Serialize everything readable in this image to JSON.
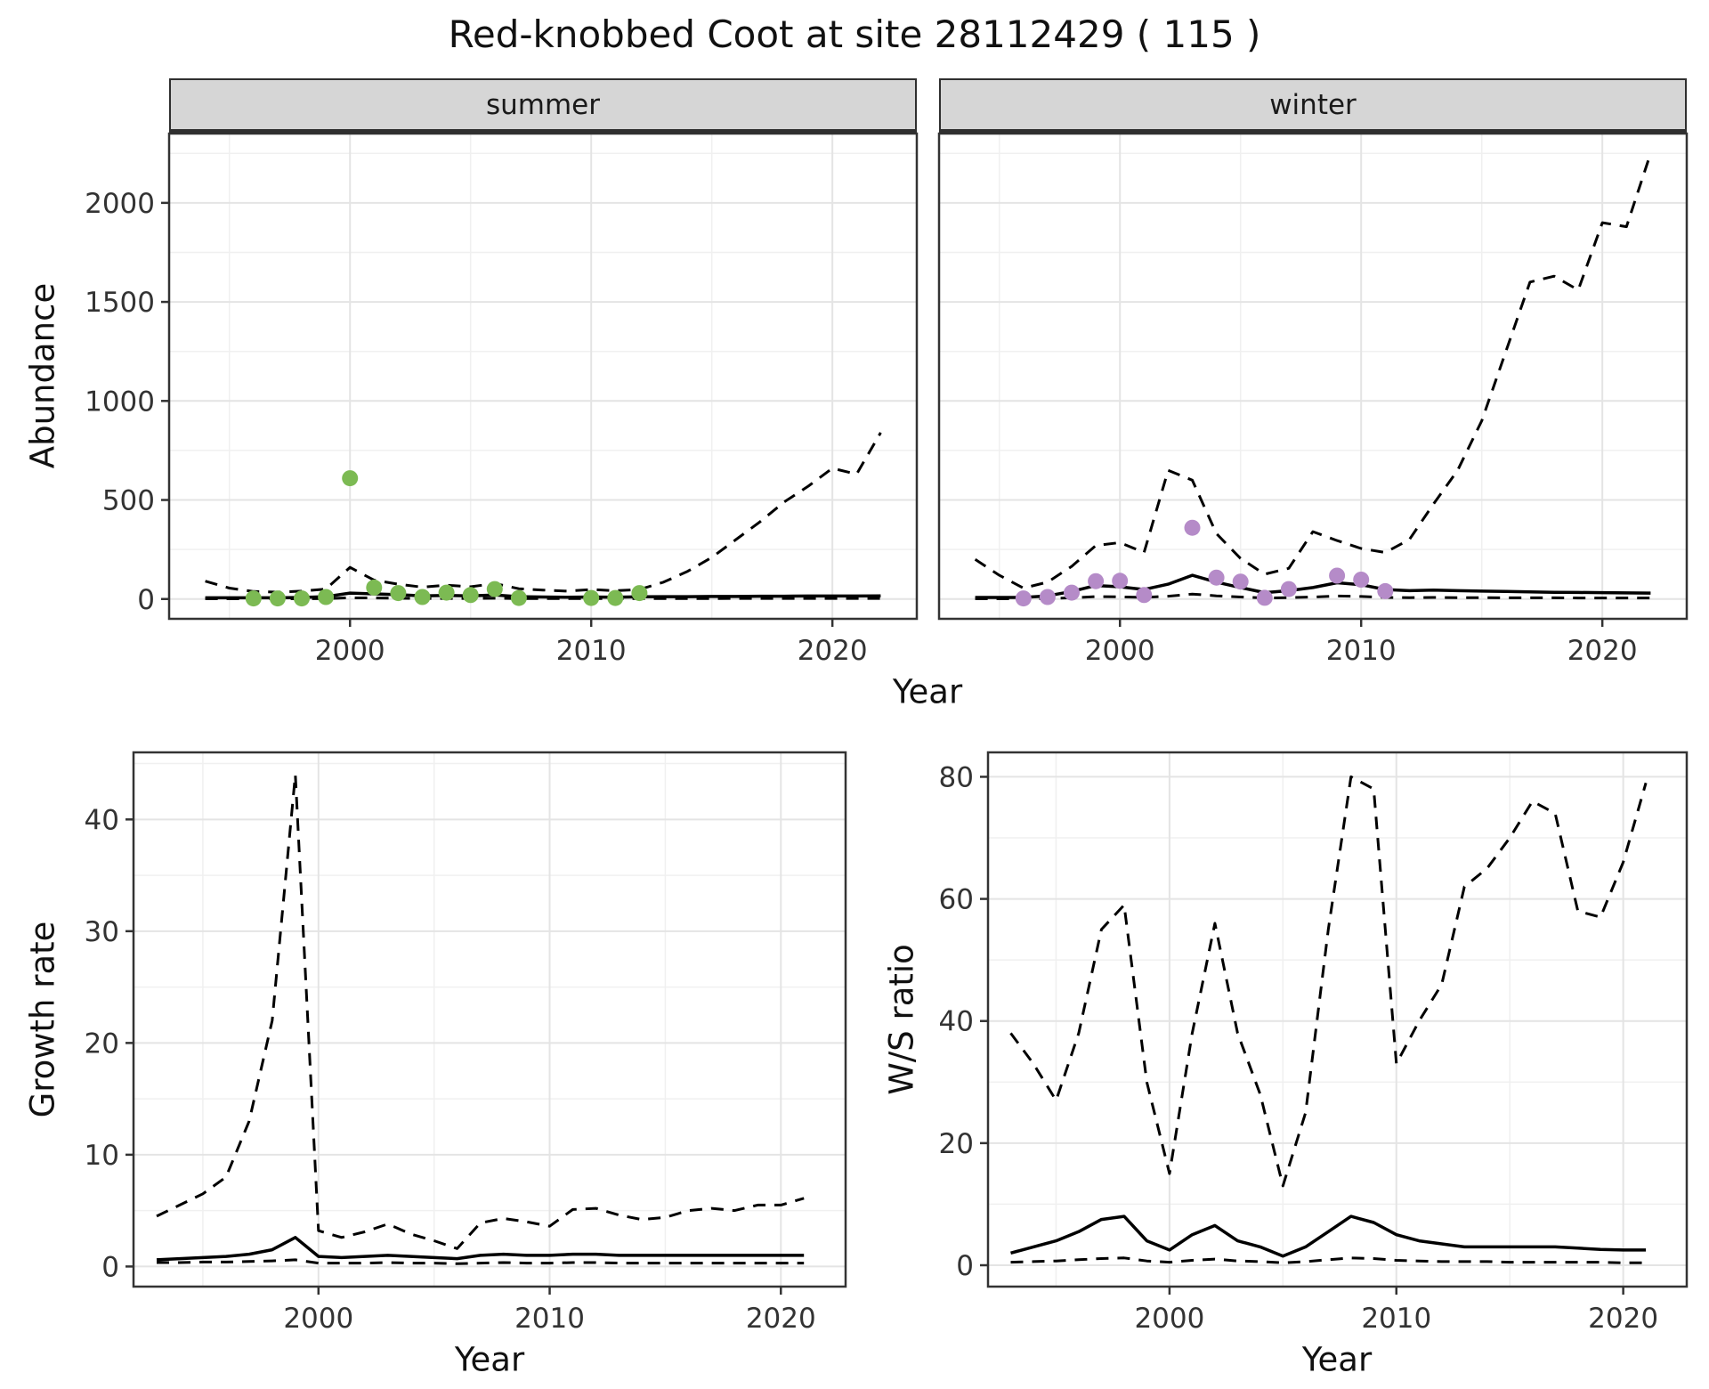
{
  "title": "Red-knobbed Coot at site 28112429 ( 115 )",
  "axes": {
    "abundance_y": "Abundance",
    "top_x": "Year",
    "growth_y": "Growth rate",
    "growth_x": "Year",
    "ratio_y": "W/S ratio",
    "ratio_x": "Year"
  },
  "colors": {
    "summer_points": "#7cba53",
    "winter_points": "#b58bc8",
    "line": "#000000",
    "grid_major": "#e4e4e4",
    "grid_minor": "#f0f0f0",
    "strip_bg": "#d6d6d6",
    "panel_border": "#333333"
  },
  "chart_data": [
    {
      "id": "abundance-summer",
      "type": "line",
      "facet_label": "summer",
      "xlabel": "Year",
      "ylabel": "Abundance",
      "xlim": [
        1992.5,
        2023.5
      ],
      "ylim": [
        -100,
        2350
      ],
      "x_ticks": [
        2000,
        2010,
        2020
      ],
      "y_ticks": [
        0,
        500,
        1000,
        1500,
        2000
      ],
      "years": [
        1994,
        1995,
        1996,
        1997,
        1998,
        1999,
        2000,
        2001,
        2002,
        2003,
        2004,
        2005,
        2006,
        2007,
        2008,
        2009,
        2010,
        2011,
        2012,
        2013,
        2014,
        2015,
        2016,
        2017,
        2018,
        2019,
        2020,
        2021,
        2022
      ],
      "series": [
        {
          "name": "upper_ci",
          "style": "dashed",
          "y": [
            90,
            55,
            38,
            35,
            40,
            50,
            160,
            95,
            75,
            60,
            70,
            62,
            78,
            52,
            45,
            40,
            48,
            42,
            48,
            85,
            140,
            210,
            300,
            390,
            490,
            570,
            660,
            630,
            840
          ]
        },
        {
          "name": "median",
          "style": "solid",
          "y": [
            6,
            6,
            6,
            6,
            8,
            12,
            30,
            26,
            22,
            16,
            18,
            16,
            20,
            12,
            10,
            9,
            10,
            9,
            11,
            12,
            12,
            13,
            13,
            14,
            14,
            15,
            15,
            15,
            16
          ]
        },
        {
          "name": "lower_ci",
          "style": "dashed",
          "y": [
            1,
            1,
            1,
            1,
            1,
            2,
            6,
            5,
            4,
            3,
            3,
            3,
            4,
            2,
            2,
            2,
            2,
            2,
            2,
            2,
            2,
            2,
            3,
            3,
            3,
            3,
            3,
            3,
            3
          ]
        },
        {
          "name": "observations",
          "style": "points",
          "color": "#7cba53",
          "x": [
            1996,
            1997,
            1998,
            1999,
            2000,
            2001,
            2002,
            2003,
            2004,
            2005,
            2006,
            2007,
            2010,
            2011,
            2012
          ],
          "y": [
            3,
            3,
            3,
            10,
            610,
            58,
            30,
            10,
            32,
            20,
            50,
            5,
            5,
            5,
            30
          ]
        }
      ]
    },
    {
      "id": "abundance-winter",
      "type": "line",
      "facet_label": "winter",
      "xlabel": "Year",
      "ylabel": "Abundance",
      "xlim": [
        1992.5,
        2023.5
      ],
      "ylim": [
        -100,
        2350
      ],
      "x_ticks": [
        2000,
        2010,
        2020
      ],
      "y_ticks": [
        0,
        500,
        1000,
        1500,
        2000
      ],
      "years": [
        1994,
        1995,
        1996,
        1997,
        1998,
        1999,
        2000,
        2001,
        2002,
        2003,
        2004,
        2005,
        2006,
        2007,
        2008,
        2009,
        2010,
        2011,
        2012,
        2013,
        2014,
        2015,
        2016,
        2017,
        2018,
        2019,
        2020,
        2021,
        2022
      ],
      "series": [
        {
          "name": "upper_ci",
          "style": "dashed",
          "y": [
            200,
            120,
            55,
            85,
            165,
            270,
            285,
            235,
            650,
            600,
            330,
            205,
            125,
            155,
            340,
            295,
            255,
            235,
            300,
            480,
            650,
            900,
            1250,
            1600,
            1630,
            1560,
            1900,
            1880,
            2250
          ]
        },
        {
          "name": "median",
          "style": "solid",
          "y": [
            8,
            8,
            8,
            16,
            38,
            68,
            62,
            48,
            75,
            120,
            85,
            58,
            32,
            42,
            58,
            82,
            72,
            48,
            42,
            45,
            42,
            40,
            38,
            36,
            34,
            33,
            32,
            31,
            30
          ]
        },
        {
          "name": "lower_ci",
          "style": "dashed",
          "y": [
            1,
            1,
            1,
            2,
            6,
            12,
            11,
            8,
            14,
            25,
            16,
            10,
            5,
            7,
            10,
            15,
            13,
            8,
            7,
            8,
            7,
            7,
            6,
            6,
            6,
            5,
            5,
            5,
            5
          ]
        },
        {
          "name": "observations",
          "style": "points",
          "color": "#b58bc8",
          "x": [
            1996,
            1997,
            1998,
            1999,
            2000,
            2001,
            2003,
            2004,
            2005,
            2006,
            2007,
            2009,
            2010,
            2011
          ],
          "y": [
            3,
            10,
            32,
            90,
            92,
            20,
            360,
            108,
            88,
            6,
            50,
            118,
            98,
            40
          ]
        }
      ]
    },
    {
      "id": "growth-rate",
      "type": "line",
      "facet_label": "",
      "xlabel": "Year",
      "ylabel": "Growth rate",
      "xlim": [
        1992,
        2022.8
      ],
      "ylim": [
        -1.8,
        46
      ],
      "x_ticks": [
        2000,
        2010,
        2020
      ],
      "y_ticks": [
        0,
        10,
        20,
        30,
        40
      ],
      "years": [
        1993,
        1994,
        1995,
        1996,
        1997,
        1998,
        1999,
        2000,
        2001,
        2002,
        2003,
        2004,
        2005,
        2006,
        2007,
        2008,
        2009,
        2010,
        2011,
        2012,
        2013,
        2014,
        2015,
        2016,
        2017,
        2018,
        2019,
        2020,
        2021
      ],
      "series": [
        {
          "name": "upper_ci",
          "style": "dashed",
          "y": [
            4.5,
            5.5,
            6.5,
            8,
            13,
            22,
            44,
            3.2,
            2.6,
            3.1,
            3.8,
            2.9,
            2.3,
            1.6,
            3.9,
            4.3,
            4,
            3.6,
            5.1,
            5.2,
            4.6,
            4.2,
            4.4,
            5,
            5.2,
            5,
            5.5,
            5.5,
            6.1
          ]
        },
        {
          "name": "median",
          "style": "solid",
          "y": [
            0.6,
            0.7,
            0.8,
            0.9,
            1.1,
            1.5,
            2.6,
            0.9,
            0.8,
            0.9,
            1,
            0.9,
            0.8,
            0.7,
            1,
            1.1,
            1,
            1,
            1.1,
            1.1,
            1,
            1,
            1,
            1,
            1,
            1,
            1,
            1,
            1
          ]
        },
        {
          "name": "lower_ci",
          "style": "dashed",
          "y": [
            0.35,
            0.35,
            0.4,
            0.4,
            0.45,
            0.5,
            0.6,
            0.3,
            0.3,
            0.3,
            0.35,
            0.3,
            0.3,
            0.25,
            0.3,
            0.35,
            0.3,
            0.3,
            0.35,
            0.35,
            0.3,
            0.3,
            0.3,
            0.3,
            0.3,
            0.3,
            0.3,
            0.3,
            0.3
          ]
        }
      ]
    },
    {
      "id": "ws-ratio",
      "type": "line",
      "facet_label": "",
      "xlabel": "Year",
      "ylabel": "W/S ratio",
      "xlim": [
        1992,
        2022.8
      ],
      "ylim": [
        -3.5,
        84
      ],
      "x_ticks": [
        2000,
        2010,
        2020
      ],
      "y_ticks": [
        0,
        20,
        40,
        60,
        80
      ],
      "years": [
        1993,
        1994,
        1995,
        1996,
        1997,
        1998,
        1999,
        2000,
        2001,
        2002,
        2003,
        2004,
        2005,
        2006,
        2007,
        2008,
        2009,
        2010,
        2011,
        2012,
        2013,
        2014,
        2015,
        2016,
        2017,
        2018,
        2019,
        2020,
        2021
      ],
      "series": [
        {
          "name": "upper_ci",
          "style": "dashed",
          "y": [
            38,
            33,
            27,
            38,
            55,
            59,
            30,
            15,
            38,
            56,
            38,
            28,
            13,
            25,
            55,
            80,
            78,
            33,
            40,
            46,
            62,
            65,
            70,
            76,
            74,
            58,
            57,
            66,
            79
          ]
        },
        {
          "name": "median",
          "style": "solid",
          "y": [
            2,
            3,
            4,
            5.5,
            7.5,
            8,
            4,
            2.5,
            5,
            6.5,
            4,
            3,
            1.5,
            3,
            5.5,
            8,
            7,
            5,
            4,
            3.5,
            3,
            3,
            3,
            3,
            3,
            2.8,
            2.6,
            2.5,
            2.5
          ]
        },
        {
          "name": "lower_ci",
          "style": "dashed",
          "y": [
            0.5,
            0.6,
            0.7,
            0.9,
            1.1,
            1.2,
            0.7,
            0.5,
            0.8,
            1,
            0.7,
            0.6,
            0.4,
            0.6,
            0.9,
            1.2,
            1.1,
            0.8,
            0.7,
            0.6,
            0.6,
            0.6,
            0.5,
            0.5,
            0.5,
            0.5,
            0.5,
            0.4,
            0.4
          ]
        }
      ]
    }
  ]
}
